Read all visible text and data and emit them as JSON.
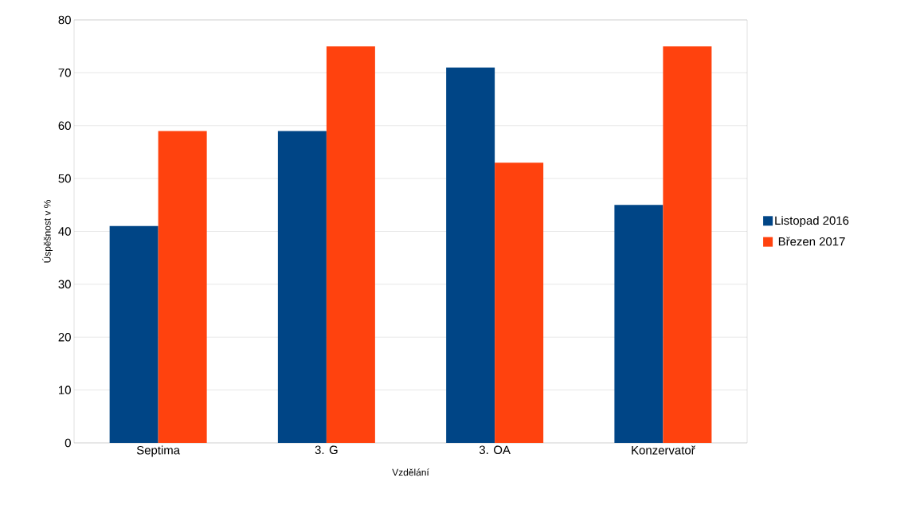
{
  "chart_data": {
    "type": "bar",
    "xlabel": "Vzdělání",
    "ylabel": "Úspěšnost v %",
    "categories": [
      "Septima",
      "3. G",
      "3. OA",
      "Konzervatoř"
    ],
    "series": [
      {
        "name": "Listopad 2016",
        "color": "#004586",
        "values": [
          41,
          59,
          71,
          45
        ]
      },
      {
        "name": "Březen 2017",
        "color": "#ff420e",
        "values": [
          59,
          75,
          53,
          75
        ]
      }
    ],
    "ylim": [
      0,
      80
    ],
    "yticks": [
      0,
      10,
      20,
      30,
      40,
      50,
      60,
      70,
      80
    ],
    "grid": "y",
    "legend": "right"
  }
}
